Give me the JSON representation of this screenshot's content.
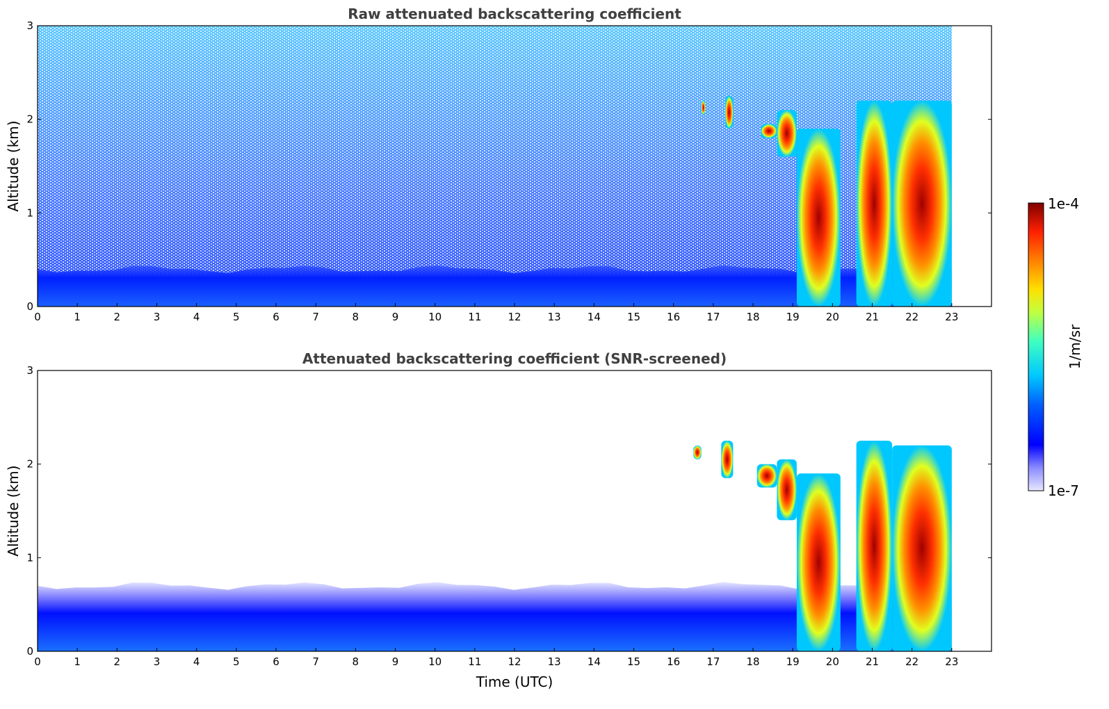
{
  "chart_data": [
    {
      "type": "heatmap",
      "title": "Raw attenuated backscattering coefficient",
      "ylabel": "Altitude (km)",
      "xlabel": "",
      "xlim": [
        0,
        24
      ],
      "ylim": [
        0,
        3
      ],
      "xticks": [
        "0",
        "1",
        "2",
        "3",
        "4",
        "5",
        "6",
        "7",
        "8",
        "9",
        "10",
        "11",
        "12",
        "13",
        "14",
        "15",
        "16",
        "17",
        "18",
        "19",
        "20",
        "21",
        "22",
        "23"
      ],
      "yticks": [
        "0",
        "1",
        "2",
        "3"
      ],
      "data_end_time": 23,
      "surface_layer": {
        "top_km": 0.4,
        "level": "1e-6"
      },
      "cloud_features": [
        {
          "t_start": 16.7,
          "t_end": 16.8,
          "alt_base": 2.05,
          "alt_top": 2.2,
          "level": "1e-4"
        },
        {
          "t_start": 17.3,
          "t_end": 17.5,
          "alt_base": 1.9,
          "alt_top": 2.25,
          "level": "1e-4"
        },
        {
          "t_start": 18.2,
          "t_end": 18.6,
          "alt_base": 1.8,
          "alt_top": 1.95,
          "level": "1e-4"
        },
        {
          "t_start": 18.6,
          "t_end": 19.1,
          "alt_base": 1.6,
          "alt_top": 2.1,
          "level": "1e-4"
        },
        {
          "t_start": 19.1,
          "t_end": 20.2,
          "alt_base": 0.0,
          "alt_top": 1.9,
          "level": "1e-4"
        },
        {
          "t_start": 20.6,
          "t_end": 21.5,
          "alt_base": 0.0,
          "alt_top": 2.2,
          "level": "1e-4"
        },
        {
          "t_start": 21.5,
          "t_end": 23.0,
          "alt_base": 0.0,
          "alt_top": 2.2,
          "level": "1e-4"
        }
      ]
    },
    {
      "type": "heatmap",
      "title": "Attenuated backscattering coefficient (SNR-screened)",
      "ylabel": "Altitude (km)",
      "xlabel": "Time (UTC)",
      "xlim": [
        0,
        24
      ],
      "ylim": [
        0,
        3
      ],
      "xticks": [
        "0",
        "1",
        "2",
        "3",
        "4",
        "5",
        "6",
        "7",
        "8",
        "9",
        "10",
        "11",
        "12",
        "13",
        "14",
        "15",
        "16",
        "17",
        "18",
        "19",
        "20",
        "21",
        "22",
        "23"
      ],
      "yticks": [
        "0",
        "1",
        "2",
        "3"
      ],
      "data_end_time": 23,
      "surface_layer": {
        "top_km": 0.7,
        "level": "1e-6"
      },
      "cloud_features": [
        {
          "t_start": 16.5,
          "t_end": 16.7,
          "alt_base": 2.05,
          "alt_top": 2.2,
          "level": "1e-4"
        },
        {
          "t_start": 17.2,
          "t_end": 17.5,
          "alt_base": 1.85,
          "alt_top": 2.25,
          "level": "1e-4"
        },
        {
          "t_start": 18.1,
          "t_end": 18.6,
          "alt_base": 1.75,
          "alt_top": 2.0,
          "level": "1e-4"
        },
        {
          "t_start": 18.6,
          "t_end": 19.1,
          "alt_base": 1.4,
          "alt_top": 2.05,
          "level": "1e-4"
        },
        {
          "t_start": 19.1,
          "t_end": 20.2,
          "alt_base": 0.0,
          "alt_top": 1.9,
          "level": "1e-4"
        },
        {
          "t_start": 20.6,
          "t_end": 21.5,
          "alt_base": 0.0,
          "alt_top": 2.25,
          "level": "1e-4"
        },
        {
          "t_start": 21.5,
          "t_end": 23.0,
          "alt_base": 0.0,
          "alt_top": 2.2,
          "level": "1e-4"
        }
      ]
    }
  ],
  "colorbar": {
    "label": "1/m/sr",
    "min_label": "1e-7",
    "max_label": "1e-4",
    "colormap": "jet"
  }
}
